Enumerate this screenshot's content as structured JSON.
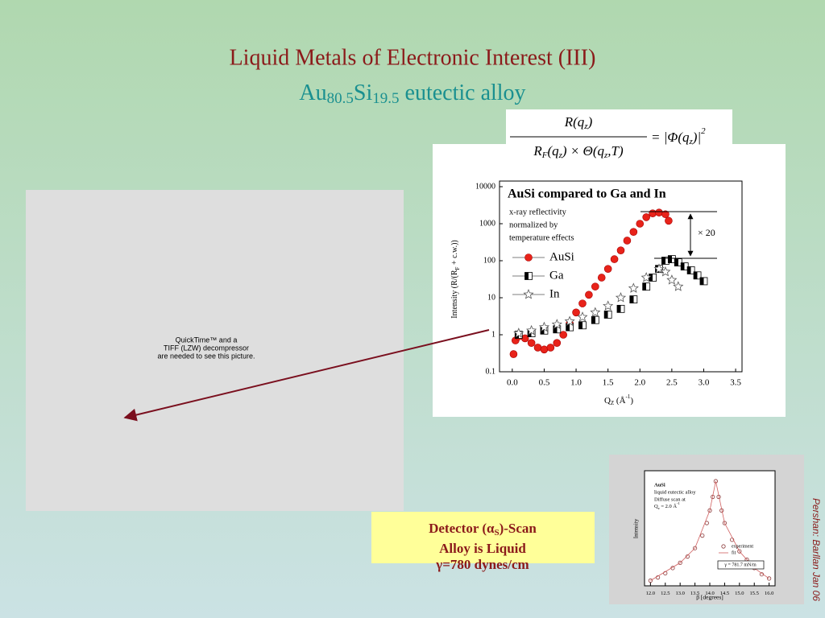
{
  "header": {
    "title": "Liquid Metals of Electronic Interest (III)",
    "subtitle": [
      "Au",
      "80.5",
      "Si",
      "19.5",
      " eutectic alloy"
    ]
  },
  "formula": {
    "numerator": [
      "R(q",
      "z",
      ")"
    ],
    "denominator": [
      "R",
      "F",
      "(q",
      "z",
      ") × Θ(q",
      "z",
      ",T)"
    ],
    "rhs": [
      "= |Φ(q",
      "z",
      ")|",
      "2"
    ]
  },
  "placeholder": [
    "QuickTime™ and a",
    "TIFF (LZW) decompressor",
    "are needed to see this picture."
  ],
  "callout": {
    "line1": [
      "Detector (",
      "α",
      "S",
      ")-Scan"
    ],
    "line2": "Alloy is Liquid",
    "line3": "γ=780 dynes/cm"
  },
  "credit": "Pershan: Barllan Jan 06",
  "chart_data": [
    {
      "type": "scatter",
      "title": "AuSi compared to Ga and In",
      "notes": [
        "x-ray reflectivity",
        "normalized by",
        "temperature effects"
      ],
      "annotation": "× 20",
      "xlabel": [
        "Q",
        "Z",
        " (Å",
        "-1",
        ")"
      ],
      "ylabel": [
        "Intensity (R/(R",
        "F",
        " + c.w.))"
      ],
      "log_y": true,
      "legend": "left",
      "xlim": [
        -0.2,
        3.6
      ],
      "ylim": [
        0.1,
        10000
      ],
      "xticks": [
        {
          "value": 0,
          "label": "0.0"
        },
        0.5,
        {
          "value": 1,
          "label": "1.0"
        },
        1.5,
        {
          "value": 2,
          "label": "2.0"
        },
        2.5,
        {
          "value": 3,
          "label": "3.0"
        },
        3.5
      ],
      "yticks": [
        0.1,
        1,
        10,
        100,
        1000,
        10000
      ],
      "series": [
        {
          "name": "AuSi",
          "color": "#e8231a",
          "marker": "circle",
          "x": [
            0.02,
            0.05,
            0.1,
            0.2,
            0.3,
            0.4,
            0.5,
            0.6,
            0.7,
            0.8,
            0.9,
            1.0,
            1.1,
            1.2,
            1.3,
            1.4,
            1.5,
            1.6,
            1.7,
            1.8,
            1.9,
            2.0,
            2.1,
            2.2,
            2.3,
            2.4,
            2.45
          ],
          "values": [
            0.3,
            0.7,
            0.9,
            0.8,
            0.6,
            0.45,
            0.4,
            0.45,
            0.6,
            1.0,
            2,
            4,
            7,
            12,
            20,
            35,
            60,
            110,
            190,
            350,
            600,
            1000,
            1500,
            1900,
            2000,
            1800,
            1200
          ]
        },
        {
          "name": "Ga",
          "color": "#000000",
          "marker": "square",
          "x": [
            0.1,
            0.3,
            0.5,
            0.7,
            0.9,
            1.1,
            1.3,
            1.5,
            1.7,
            1.9,
            2.1,
            2.2,
            2.3,
            2.4,
            2.5,
            2.6,
            2.7,
            2.8,
            2.9,
            3.0
          ],
          "values": [
            1,
            1.1,
            1.3,
            1.4,
            1.6,
            1.8,
            2.5,
            3.5,
            5,
            9,
            20,
            35,
            60,
            100,
            110,
            90,
            70,
            55,
            40,
            28
          ]
        },
        {
          "name": "In",
          "color": "#555555",
          "marker": "star",
          "x": [
            0.1,
            0.3,
            0.5,
            0.7,
            0.9,
            1.1,
            1.3,
            1.5,
            1.7,
            1.9,
            2.1,
            2.3,
            2.4,
            2.5,
            2.6
          ],
          "values": [
            1.1,
            1.3,
            1.6,
            1.9,
            2.3,
            3,
            4,
            6,
            10,
            18,
            35,
            60,
            50,
            30,
            20
          ]
        }
      ]
    },
    {
      "type": "scatter",
      "notes": [
        "AuSi",
        "liquid eutectic alloy",
        "Diffuse scan at"
      ],
      "scan_note": [
        "Q",
        "z",
        " = 2.0 Å",
        "-1"
      ],
      "fit_note": "γ = 781.7 mN/m",
      "xlabel": "β [degrees]",
      "ylabel": "Intensity",
      "xlim": [
        11.8,
        16.2
      ],
      "ylim": [
        0,
        1.1
      ],
      "xticks": [
        {
          "value": 12,
          "label": "12.0"
        },
        12.5,
        {
          "value": 13,
          "label": "13.0"
        },
        13.5,
        {
          "value": 14,
          "label": "14.0"
        },
        14.5,
        {
          "value": 15,
          "label": "15.0"
        },
        15.5,
        {
          "value": 16,
          "label": "16.0"
        }
      ],
      "series": [
        {
          "name": "experiment",
          "color": "#8b3a3a",
          "marker": "open-circle",
          "x": [
            12.0,
            12.25,
            12.5,
            12.75,
            13.0,
            13.25,
            13.5,
            13.75,
            13.9,
            14.0,
            14.1,
            14.2,
            14.3,
            14.4,
            14.5,
            14.75,
            15.0,
            15.25,
            15.5,
            15.75,
            16.0
          ],
          "values": [
            0.05,
            0.08,
            0.12,
            0.17,
            0.22,
            0.28,
            0.36,
            0.48,
            0.6,
            0.72,
            0.85,
            1.0,
            0.85,
            0.72,
            0.6,
            0.44,
            0.33,
            0.25,
            0.17,
            0.11,
            0.07
          ]
        },
        {
          "name": "fit",
          "color": "#d06060",
          "marker": "line",
          "x": [
            12.0,
            13.0,
            13.5,
            14.0,
            14.2,
            14.5,
            15.0,
            15.5,
            16.0
          ],
          "values": [
            0.05,
            0.22,
            0.36,
            0.72,
            1.0,
            0.6,
            0.33,
            0.17,
            0.07
          ]
        }
      ]
    }
  ]
}
